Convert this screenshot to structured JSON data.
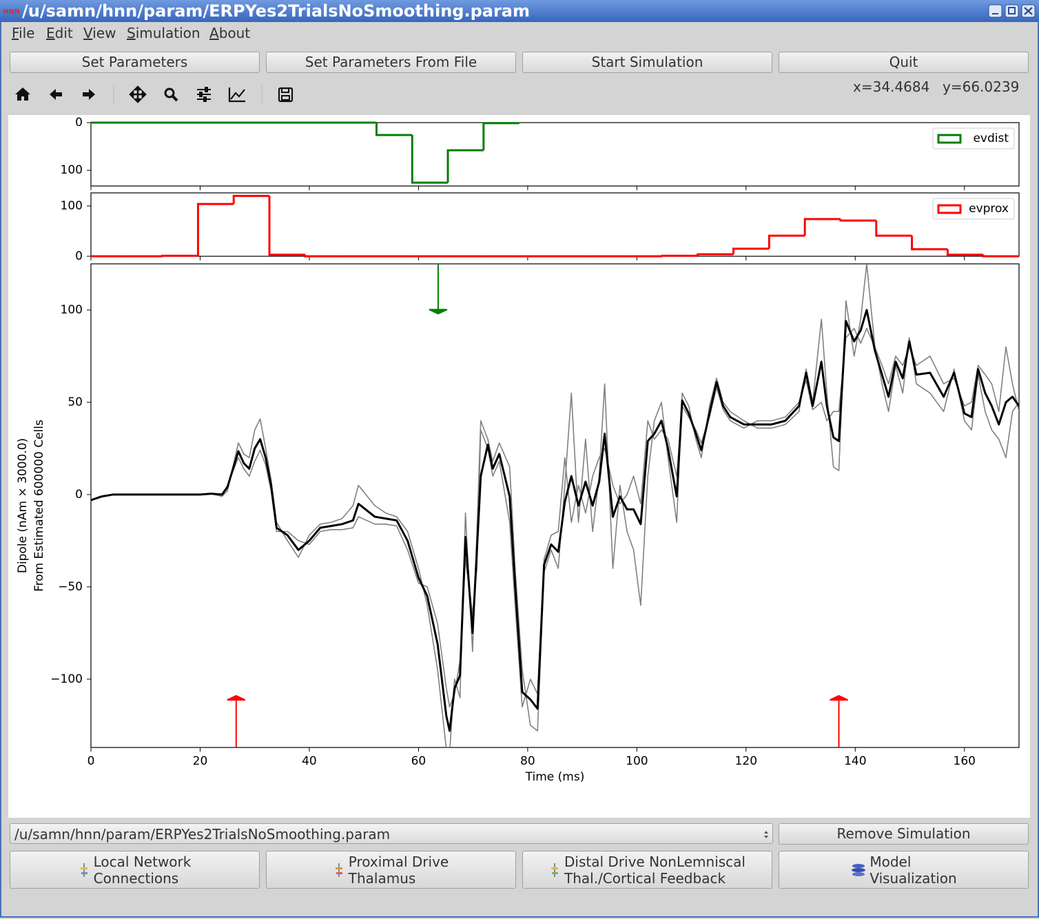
{
  "window": {
    "title": "/u/samn/hnn/param/ERPYes2TrialsNoSmoothing.param"
  },
  "menu": [
    "File",
    "Edit",
    "View",
    "Simulation",
    "About"
  ],
  "buttons": [
    "Set Parameters",
    "Set Parameters From File",
    "Start Simulation",
    "Quit"
  ],
  "coordinates": [
    "x=34.4684",
    "y=66.0239"
  ],
  "chart_data": [
    {
      "type": "histogram",
      "xlim": [
        0,
        170
      ],
      "xticks": [
        0,
        20,
        40,
        60,
        80,
        100,
        120,
        140,
        160
      ],
      "ylim": [
        0,
        133
      ],
      "yticks": [
        0,
        100
      ],
      "inverted": true,
      "legend": "upper right",
      "bins": [
        0,
        6.54,
        13.08,
        19.62,
        26.15,
        32.69,
        39.23,
        45.77,
        52.31,
        58.85,
        65.38,
        71.92,
        78.46
      ],
      "series": [
        {
          "name": "evdist",
          "color": "#008000",
          "values": [
            0,
            0,
            0,
            0,
            0,
            0,
            0,
            0,
            26,
            126,
            58,
            1
          ]
        }
      ]
    },
    {
      "type": "histogram",
      "xlim": [
        0,
        170
      ],
      "xticks": [
        0,
        20,
        40,
        60,
        80,
        100,
        120,
        140,
        160
      ],
      "ylim": [
        0,
        126
      ],
      "yticks": [
        0,
        100
      ],
      "legend": "upper right",
      "bins": [
        0,
        6.54,
        13.08,
        19.62,
        26.15,
        32.69,
        39.23,
        45.77,
        52.31,
        58.85,
        65.38,
        71.92,
        78.46,
        85,
        91.54,
        98.08,
        104.62,
        111.15,
        117.69,
        124.23,
        130.77,
        137.31,
        143.85,
        150.38,
        156.92,
        163.46,
        170
      ],
      "series": [
        {
          "name": "evprox",
          "color": "#ff0000",
          "values": [
            0,
            0,
            1,
            104,
            120,
            3,
            0,
            0,
            0,
            0,
            0,
            0,
            0,
            0,
            0,
            0,
            1,
            4,
            15,
            41,
            74,
            71,
            41,
            14,
            3,
            0
          ]
        }
      ]
    },
    {
      "type": "line",
      "xlabel": "Time (ms)",
      "ylabel": [
        "Dipole (nAm × 3000.0)",
        "From Estimated 600000 Cells"
      ],
      "xlim": [
        0,
        170
      ],
      "xticks": [
        0,
        20,
        40,
        60,
        80,
        100,
        120,
        140,
        160
      ],
      "ylim": [
        -137,
        125
      ],
      "yticks": [
        {
          "value": -100,
          "label": "−100"
        },
        {
          "value": -50,
          "label": "−50"
        },
        0,
        50,
        100
      ],
      "x": [
        0,
        2,
        4,
        10,
        20,
        22,
        24,
        25,
        27,
        28,
        29,
        30,
        31,
        32,
        33,
        34,
        36,
        38,
        40,
        42,
        44,
        46,
        48,
        49,
        52,
        54,
        56,
        58,
        60,
        61.6,
        63.5,
        65.1,
        65.7,
        66.6,
        67.6,
        68.6,
        69.9,
        70.7,
        71.4,
        72.7,
        73.6,
        74.8,
        76.7,
        77.7,
        79,
        80.5,
        81.8,
        83,
        84.3,
        85.6,
        86.8,
        88,
        89.3,
        90.6,
        91.9,
        93.1,
        94.1,
        95.6,
        96.9,
        98.2,
        99.4,
        100.7,
        102,
        103.2,
        104.5,
        105.7,
        107.3,
        108.3,
        109.5,
        110.8,
        111.8,
        113.3,
        114.6,
        115.8,
        117.1,
        119.6,
        122.1,
        124.7,
        127.2,
        129.7,
        131,
        132.2,
        133.8,
        134.8,
        136,
        137,
        138.3,
        139.8,
        141,
        142.1,
        143.6,
        144.9,
        146.1,
        147.4,
        148.7,
        149.9,
        151.2,
        153.7,
        156.2,
        158.1,
        160,
        161.3,
        162.5,
        163.8,
        165,
        166.3,
        167.6,
        168.8,
        170
      ],
      "series": [
        {
          "color": "#808080",
          "values": [
            -3,
            -1,
            0,
            0,
            0,
            0.5,
            -1,
            2,
            28,
            22,
            20,
            35,
            41,
            25,
            8,
            -15,
            -25,
            -34,
            -22,
            -16,
            -15,
            -13,
            -6,
            5,
            -6,
            -10,
            -12,
            -20,
            -40,
            -60,
            -95,
            -138,
            -140,
            -100,
            -110,
            -10,
            -85,
            -20,
            40,
            30,
            18,
            28,
            15,
            -40,
            -95,
            -125,
            -128,
            -42,
            -30,
            -40,
            5,
            55,
            -15,
            30,
            -20,
            10,
            60,
            -40,
            5,
            -20,
            -30,
            -60,
            10,
            40,
            50,
            20,
            -15,
            55,
            48,
            30,
            20,
            48,
            63,
            50,
            45,
            40,
            36,
            36,
            38,
            45,
            68,
            50,
            95,
            55,
            15,
            13,
            105,
            75,
            95,
            125,
            80,
            60,
            45,
            70,
            55,
            85,
            60,
            55,
            45,
            68,
            40,
            35,
            65,
            45,
            35,
            30,
            20,
            45,
            50
          ]
        },
        {
          "color": "#808080",
          "values": [
            -3,
            -1,
            0,
            0,
            0,
            0.3,
            0,
            5,
            20,
            14,
            10,
            18,
            24,
            16,
            2,
            -20,
            -20,
            -25,
            -27,
            -20,
            -19,
            -19,
            -18,
            -12,
            -16,
            -16,
            -17,
            -30,
            -48,
            -50,
            -70,
            -105,
            -115,
            -108,
            -90,
            -35,
            -65,
            -40,
            35,
            25,
            10,
            18,
            -15,
            -60,
            -115,
            -100,
            -108,
            -35,
            -22,
            -20,
            20,
            -15,
            5,
            -10,
            10,
            20,
            25,
            5,
            -5,
            0,
            10,
            -5,
            40,
            30,
            35,
            30,
            10,
            48,
            42,
            35,
            28,
            42,
            58,
            46,
            40,
            36,
            40,
            40,
            42,
            50,
            62,
            46,
            50,
            40,
            45,
            45,
            85,
            90,
            82,
            90,
            80,
            70,
            60,
            75,
            70,
            80,
            70,
            75,
            60,
            63,
            48,
            50,
            70,
            65,
            60,
            45,
            80,
            60,
            45
          ]
        },
        {
          "color": "#000000",
          "values": [
            -3,
            -1,
            0,
            0,
            0,
            0.5,
            0,
            4,
            23.5,
            17,
            14,
            25,
            30,
            20,
            5,
            -18,
            -22,
            -30,
            -25,
            -18,
            -17,
            -16,
            -14,
            -5,
            -12,
            -13,
            -14,
            -25,
            -45,
            -55,
            -81,
            -120,
            -128,
            -105,
            -98,
            -23,
            -75,
            -30,
            10,
            27,
            14,
            22,
            -1,
            -49,
            -107,
            -111,
            -116,
            -38,
            -27,
            -31,
            -4,
            10,
            -6,
            7,
            -6,
            7,
            33,
            -12,
            -1,
            -8,
            -8,
            -16,
            29,
            33,
            40,
            25,
            -1,
            51,
            44,
            33,
            24,
            44,
            61,
            48,
            42,
            38,
            38,
            38,
            40,
            48,
            66,
            48,
            72,
            48,
            31,
            29,
            94,
            83,
            89,
            100,
            78,
            65,
            53,
            72,
            63,
            83,
            65,
            66,
            53,
            66,
            44,
            42,
            68,
            55,
            48,
            38,
            50,
            53,
            48
          ]
        }
      ],
      "arrows": [
        {
          "x": 63.6,
          "y": 98,
          "color": "#008000"
        },
        {
          "x": 26.6,
          "y": -109,
          "color": "#ff0000"
        },
        {
          "x": 137,
          "y": -109,
          "color": "#ff0000"
        }
      ]
    }
  ],
  "simulation_select": "/u/samn/hnn/param/ERPYes2TrialsNoSmoothing.param",
  "remove_button": "Remove Simulation",
  "drive_buttons": [
    [
      "Local Network",
      "Connections"
    ],
    [
      "Proximal Drive",
      "Thalamus"
    ],
    [
      "Distal Drive NonLemniscal",
      "Thal./Cortical Feedback"
    ],
    [
      "Model",
      "Visualization"
    ]
  ]
}
